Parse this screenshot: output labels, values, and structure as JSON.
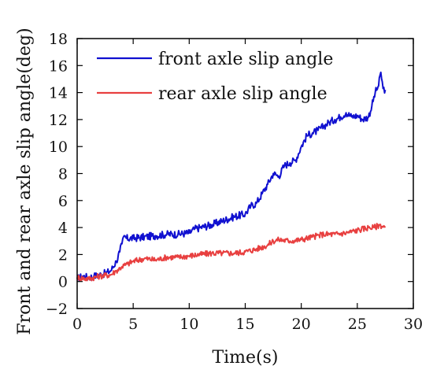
{
  "chart_data": {
    "type": "line",
    "xlabel": "Time(s)",
    "ylabel": "Front and rear axle slip angle(deg)",
    "xlim": [
      0,
      30
    ],
    "ylim": [
      -2,
      18
    ],
    "xticks": [
      0,
      5,
      10,
      15,
      20,
      25,
      30
    ],
    "yticks": [
      -2,
      0,
      2,
      4,
      6,
      8,
      10,
      12,
      14,
      16,
      18
    ],
    "grid": false,
    "legend_position": "top-left",
    "series": [
      {
        "name": "front axle slip angle",
        "color": "#1010d0",
        "x": [
          0,
          0.5,
          1.0,
          1.5,
          2.0,
          2.5,
          3.0,
          3.5,
          3.8,
          4.0,
          4.2,
          4.4,
          5.0,
          6.0,
          7.0,
          8.0,
          9.0,
          10.0,
          10.5,
          11.0,
          12.0,
          13.0,
          14.0,
          15.0,
          15.5,
          16.0,
          16.5,
          17.0,
          17.5,
          18.0,
          18.5,
          19.0,
          19.5,
          20.0,
          20.5,
          21.0,
          21.5,
          22.0,
          22.5,
          23.0,
          23.5,
          24.0,
          24.5,
          25.0,
          25.5,
          26.0,
          26.3,
          26.6,
          26.9,
          27.1,
          27.3,
          27.5
        ],
        "values": [
          0.2,
          0.4,
          0.3,
          0.4,
          0.5,
          0.6,
          0.8,
          1.5,
          2.2,
          2.8,
          3.4,
          3.2,
          3.2,
          3.3,
          3.4,
          3.5,
          3.5,
          3.6,
          3.9,
          4.0,
          4.2,
          4.5,
          4.8,
          5.0,
          5.6,
          5.8,
          6.5,
          7.2,
          8.0,
          7.8,
          8.6,
          8.8,
          9.0,
          10.0,
          10.8,
          11.0,
          11.2,
          11.5,
          11.8,
          12.0,
          12.2,
          12.5,
          12.2,
          12.3,
          12.0,
          12.2,
          13.0,
          14.0,
          14.5,
          15.5,
          14.3,
          14.2
        ]
      },
      {
        "name": "rear axle slip angle",
        "color": "#e84040",
        "x": [
          0,
          1.0,
          2.0,
          3.0,
          3.5,
          4.0,
          4.5,
          5.0,
          6.0,
          7.0,
          8.0,
          9.0,
          10.0,
          11.0,
          12.0,
          13.0,
          14.0,
          15.0,
          16.0,
          17.0,
          17.5,
          18.0,
          19.0,
          20.0,
          21.0,
          22.0,
          23.0,
          24.0,
          25.0,
          26.0,
          26.5,
          27.0,
          27.5
        ],
        "values": [
          0.3,
          0.2,
          0.4,
          0.5,
          0.8,
          1.1,
          1.3,
          1.5,
          1.7,
          1.6,
          1.8,
          1.8,
          1.9,
          2.0,
          2.1,
          2.1,
          2.1,
          2.2,
          2.4,
          2.7,
          3.0,
          3.1,
          3.0,
          3.1,
          3.3,
          3.5,
          3.5,
          3.6,
          3.8,
          4.0,
          4.0,
          4.2,
          4.0
        ]
      }
    ]
  }
}
